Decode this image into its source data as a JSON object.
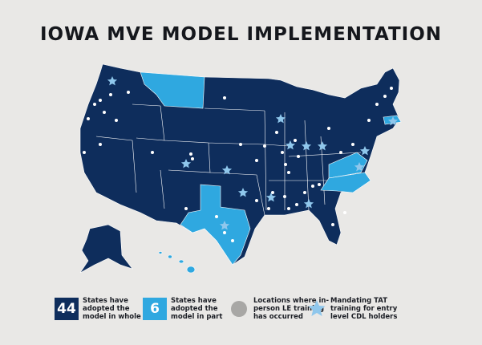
{
  "title": "IOWA MVE MODEL IMPLEMENTATION",
  "legend": [
    {
      "count": 44,
      "label_lines": [
        "States have",
        "adopted the",
        "model in whole"
      ]
    },
    {
      "count": 6,
      "label_lines": [
        "States have",
        "adopted the",
        "model in part"
      ]
    },
    {
      "label_lines": [
        "Locations where in-",
        "person LE training",
        "has occurred"
      ]
    },
    {
      "label_lines": [
        "Mandating TAT",
        "training for entry",
        "level CDL holders"
      ]
    }
  ]
}
